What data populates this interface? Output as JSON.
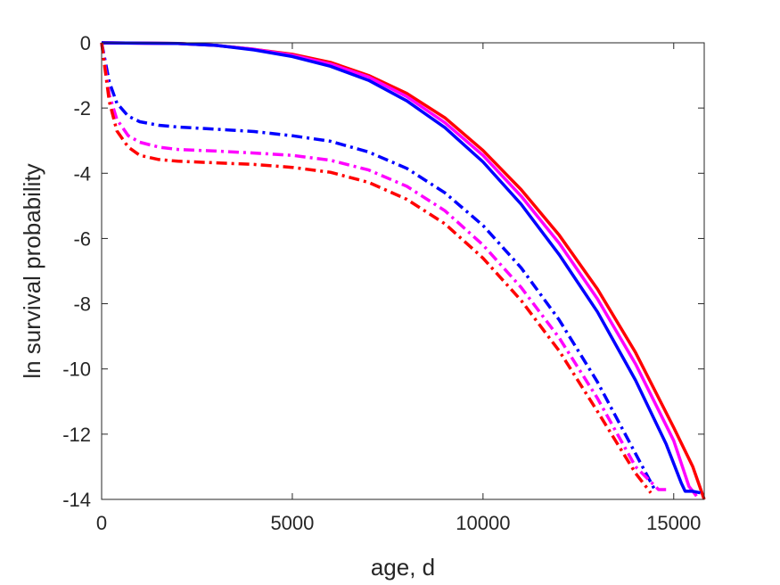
{
  "chart_data": {
    "type": "line",
    "title": "",
    "xlabel": "age, d",
    "ylabel": "ln survival probability",
    "xlim": [
      0,
      15800
    ],
    "ylim": [
      -14,
      0
    ],
    "xticks": [
      0,
      5000,
      10000,
      15000
    ],
    "yticks": [
      0,
      -2,
      -4,
      -6,
      -8,
      -10,
      -12,
      -14
    ],
    "xtick_labels": [
      "0",
      "5000",
      "10000",
      "15000"
    ],
    "ytick_labels": [
      "0",
      "-2",
      "-4",
      "-6",
      "-8",
      "-10",
      "-12",
      "-14"
    ],
    "grid": false,
    "legend": "none",
    "series": [
      {
        "color": "#ff0000",
        "dash": "solid",
        "x": [
          0,
          2000,
          3000,
          4000,
          5000,
          6000,
          7000,
          8000,
          9000,
          10000,
          11000,
          12000,
          13000,
          14000,
          15000,
          15500,
          15800
        ],
        "y": [
          0,
          -0.02,
          -0.08,
          -0.2,
          -0.35,
          -0.6,
          -1.0,
          -1.55,
          -2.3,
          -3.3,
          -4.5,
          -5.9,
          -7.55,
          -9.5,
          -11.8,
          -13.0,
          -14.0
        ]
      },
      {
        "color": "#ff00ff",
        "dash": "solid",
        "x": [
          0,
          2000,
          3000,
          4000,
          5000,
          6000,
          7000,
          8000,
          9000,
          10000,
          11000,
          12000,
          13000,
          14000,
          15000,
          15400,
          15600
        ],
        "y": [
          0,
          -0.02,
          -0.08,
          -0.2,
          -0.38,
          -0.65,
          -1.05,
          -1.65,
          -2.45,
          -3.45,
          -4.7,
          -6.15,
          -7.85,
          -9.85,
          -12.2,
          -13.6,
          -13.9
        ]
      },
      {
        "color": "#0000ff",
        "dash": "solid",
        "x": [
          0,
          2000,
          3000,
          4000,
          5000,
          6000,
          7000,
          8000,
          9000,
          10000,
          11000,
          12000,
          13000,
          14000,
          14800,
          15200,
          15300,
          15500,
          15700
        ],
        "y": [
          0,
          -0.02,
          -0.08,
          -0.22,
          -0.42,
          -0.72,
          -1.15,
          -1.78,
          -2.6,
          -3.65,
          -4.95,
          -6.5,
          -8.25,
          -10.35,
          -12.3,
          -13.5,
          -13.75,
          -13.75,
          -13.8
        ]
      },
      {
        "color": "#0000ff",
        "dash": "dashdot",
        "x": [
          0,
          100,
          200,
          400,
          700,
          1000,
          1500,
          2000,
          3000,
          4000,
          5000,
          6000,
          7000,
          8000,
          9000,
          10000,
          11000,
          12000,
          13000,
          14000,
          14500
        ],
        "y": [
          0,
          -0.6,
          -1.2,
          -1.85,
          -2.25,
          -2.42,
          -2.53,
          -2.58,
          -2.65,
          -2.72,
          -2.85,
          -3.02,
          -3.35,
          -3.85,
          -4.6,
          -5.6,
          -6.9,
          -8.5,
          -10.4,
          -12.6,
          -13.7
        ]
      },
      {
        "color": "#ff00ff",
        "dash": "dashdot",
        "x": [
          0,
          100,
          200,
          400,
          700,
          1000,
          1500,
          2000,
          3000,
          4000,
          5000,
          6000,
          7000,
          8000,
          9000,
          10000,
          11000,
          12000,
          13000,
          14000,
          14600,
          14800
        ],
        "y": [
          0,
          -0.8,
          -1.6,
          -2.35,
          -2.85,
          -3.05,
          -3.2,
          -3.27,
          -3.32,
          -3.38,
          -3.45,
          -3.6,
          -3.9,
          -4.4,
          -5.15,
          -6.2,
          -7.5,
          -9.05,
          -10.9,
          -13.0,
          -13.7,
          -13.7
        ]
      },
      {
        "color": "#ff0000",
        "dash": "dashdot",
        "x": [
          0,
          100,
          200,
          400,
          700,
          1000,
          1500,
          2000,
          3000,
          4000,
          5000,
          6000,
          7000,
          8000,
          9000,
          10000,
          11000,
          12000,
          13000,
          14000,
          14400
        ],
        "y": [
          0,
          -0.9,
          -1.8,
          -2.7,
          -3.2,
          -3.45,
          -3.58,
          -3.63,
          -3.68,
          -3.73,
          -3.82,
          -3.97,
          -4.28,
          -4.8,
          -5.55,
          -6.6,
          -7.9,
          -9.45,
          -11.3,
          -13.2,
          -13.8
        ]
      }
    ]
  }
}
